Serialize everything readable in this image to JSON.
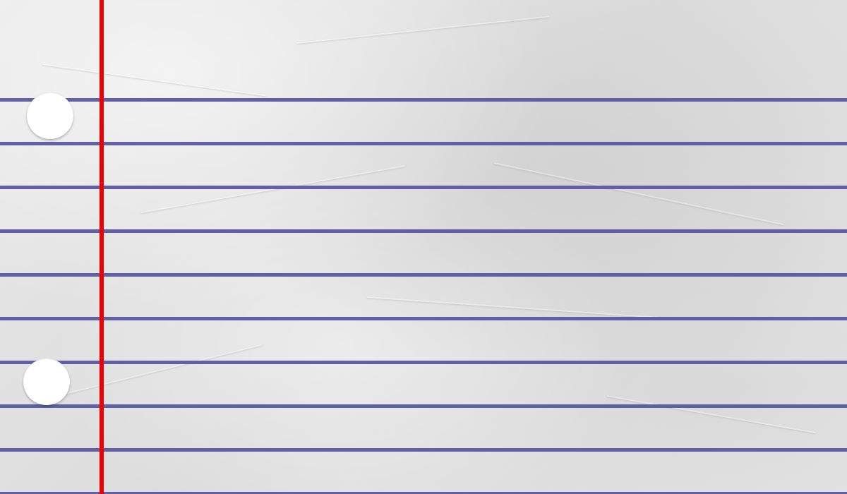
{
  "paper": {
    "type": "lined notebook paper",
    "background_color": "#e6e6e6",
    "rule_color": "#5b57a0",
    "margin_color": "#f00000",
    "hole_color": "#ffffff"
  }
}
